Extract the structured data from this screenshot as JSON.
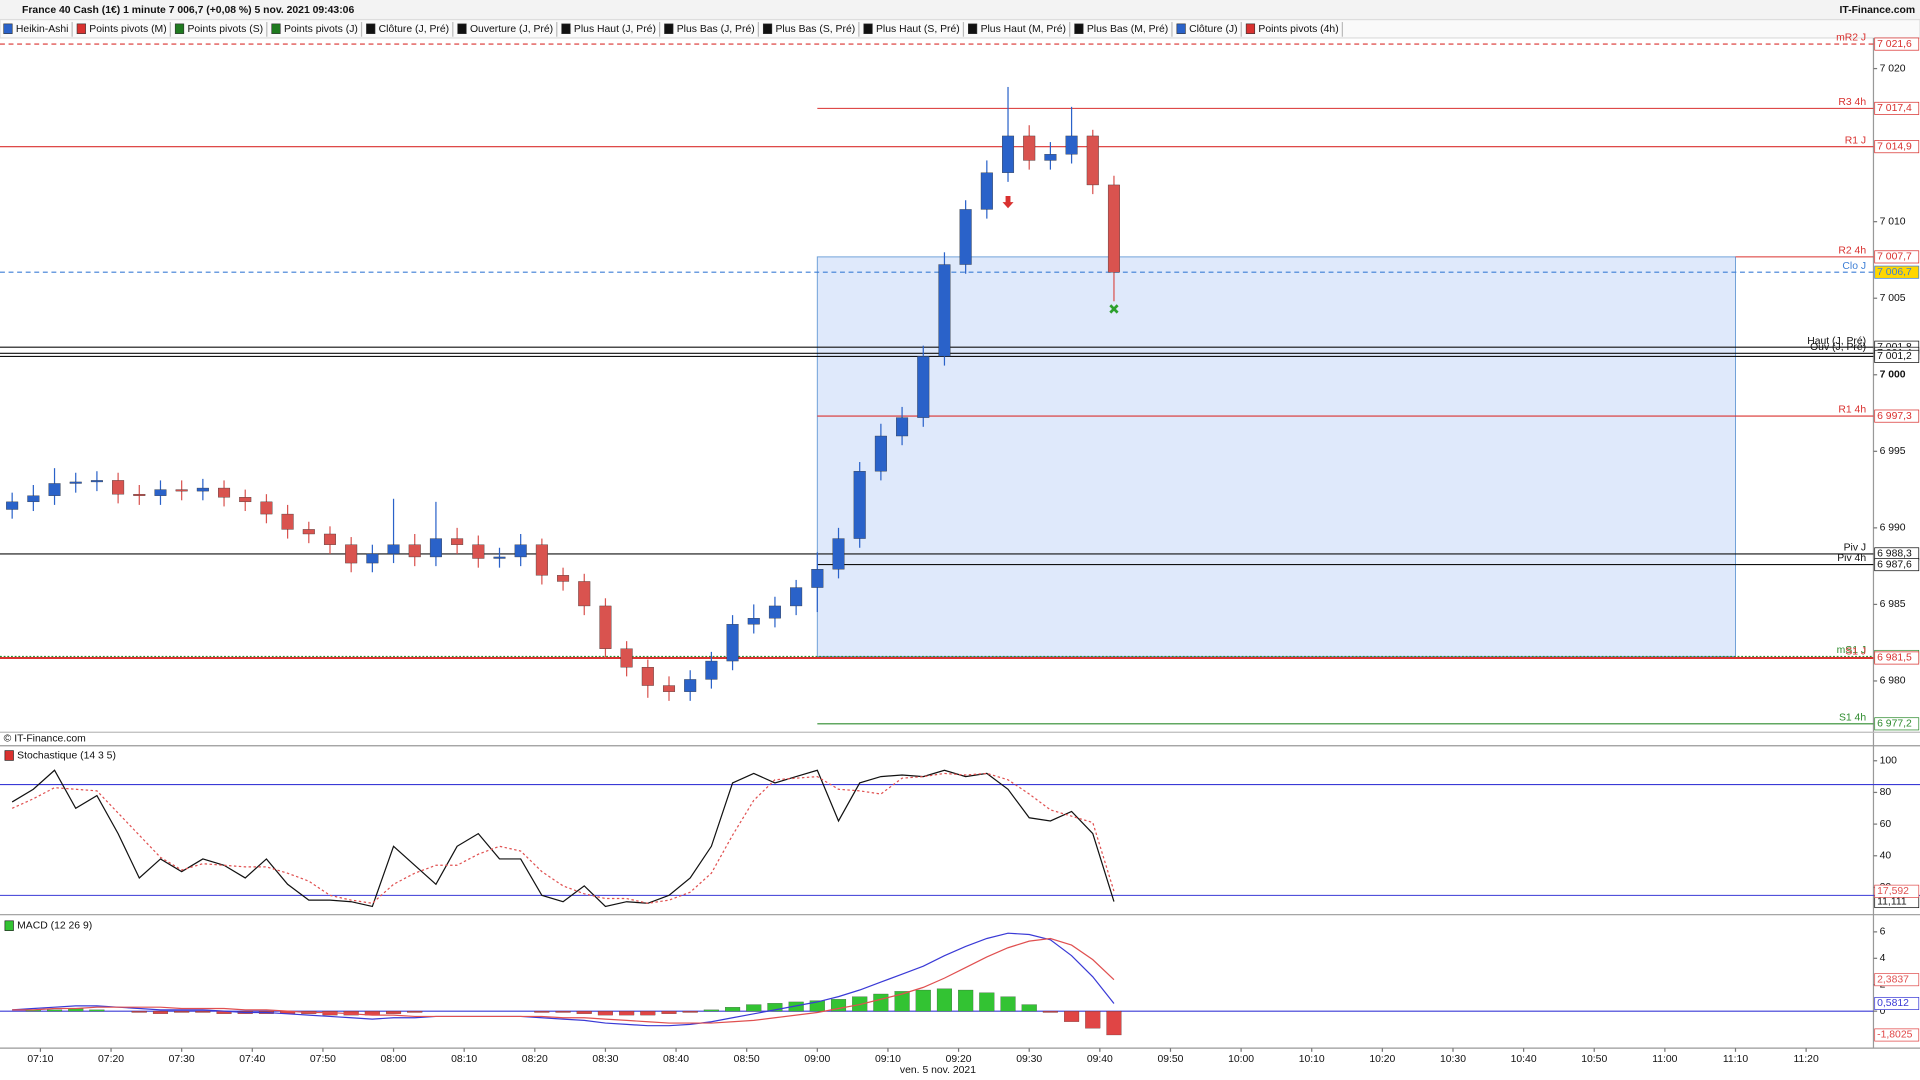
{
  "header": {
    "title": "France 40 Cash (1€) 1 minute 7 006,7 (+0,08 %) 5 nov. 2021 09:43:06",
    "brand": "IT-Finance.com"
  },
  "toolbar": [
    {
      "label": "Heikin-Ashi",
      "color": "#2a62c9"
    },
    {
      "label": "Points pivots (M)",
      "color": "#d9312f"
    },
    {
      "label": "Points pivots (S)",
      "color": "#1f7a1f"
    },
    {
      "label": "Points pivots (J)",
      "color": "#1f7a1f"
    },
    {
      "label": "Clôture (J, Pré)",
      "color": "#111111"
    },
    {
      "label": "Ouverture (J, Pré)",
      "color": "#111111"
    },
    {
      "label": "Plus Haut (J, Pré)",
      "color": "#111111"
    },
    {
      "label": "Plus Bas (J, Pré)",
      "color": "#111111"
    },
    {
      "label": "Plus Bas (S, Pré)",
      "color": "#111111"
    },
    {
      "label": "Plus Haut (S, Pré)",
      "color": "#111111"
    },
    {
      "label": "Plus Haut (M, Pré)",
      "color": "#111111"
    },
    {
      "label": "Plus Bas (M, Pré)",
      "color": "#111111"
    },
    {
      "label": "Clôture (J)",
      "color": "#2a62c9"
    },
    {
      "label": "Points pivots (4h)",
      "color": "#d9312f"
    }
  ],
  "chart_data": [
    {
      "type": "candlestick",
      "watermark": "© IT-Finance.com",
      "xlabel": "ven. 5 nov. 2021",
      "x": [
        "07:06",
        "07:09",
        "07:12",
        "07:15",
        "07:18",
        "07:21",
        "07:24",
        "07:27",
        "07:30",
        "07:33",
        "07:36",
        "07:39",
        "07:42",
        "07:45",
        "07:48",
        "07:51",
        "07:54",
        "07:57",
        "08:00",
        "08:03",
        "08:06",
        "08:09",
        "08:12",
        "08:15",
        "08:18",
        "08:21",
        "08:24",
        "08:27",
        "08:30",
        "08:33",
        "08:36",
        "08:39",
        "08:42",
        "08:45",
        "08:48",
        "08:51",
        "08:54",
        "08:57",
        "09:00",
        "09:03",
        "09:06",
        "09:09",
        "09:12",
        "09:15",
        "09:18",
        "09:21",
        "09:24",
        "09:27",
        "09:30",
        "09:33",
        "09:36",
        "09:39",
        "09:42"
      ],
      "opens": [
        6991.2,
        6991.7,
        6992.1,
        6992.9,
        6993.0,
        6993.1,
        6992.2,
        6992.1,
        6992.5,
        6992.4,
        6992.6,
        6992.0,
        6991.7,
        6990.9,
        6989.9,
        6989.6,
        6988.9,
        6987.7,
        6988.3,
        6988.9,
        6988.1,
        6989.3,
        6988.9,
        6988.0,
        6988.1,
        6988.9,
        6986.9,
        6986.5,
        6984.9,
        6982.1,
        6980.9,
        6979.7,
        6979.3,
        6980.1,
        6981.3,
        6983.7,
        6984.1,
        6984.9,
        6986.1,
        6987.3,
        6989.3,
        6993.7,
        6996.0,
        6997.2,
        7001.2,
        7007.2,
        7010.8,
        7013.2,
        7015.6,
        7014.0,
        7014.4,
        7015.6,
        7012.4
      ],
      "highs": [
        6992.3,
        6992.8,
        6993.9,
        6993.6,
        6993.7,
        6993.6,
        6992.8,
        6993.1,
        6993.1,
        6993.2,
        6993.1,
        6992.5,
        6992.2,
        6991.5,
        6990.4,
        6990.1,
        6989.4,
        6988.9,
        6991.9,
        6989.6,
        6991.7,
        6990.0,
        6989.5,
        6988.7,
        6989.6,
        6989.3,
        6987.4,
        6987.0,
        6985.4,
        6982.6,
        6981.4,
        6980.3,
        6980.7,
        6981.9,
        6984.3,
        6985.0,
        6985.5,
        6986.6,
        6988.4,
        6990.0,
        6994.3,
        6996.8,
        6997.9,
        7001.9,
        7008.0,
        7011.4,
        7014.0,
        7018.8,
        7016.3,
        7015.2,
        7017.5,
        7016.0,
        7013.0
      ],
      "lows": [
        6990.6,
        6991.1,
        6991.5,
        6992.3,
        6992.4,
        6991.6,
        6991.5,
        6991.5,
        6991.8,
        6991.8,
        6991.4,
        6991.1,
        6990.3,
        6989.3,
        6989.0,
        6988.3,
        6987.1,
        6987.1,
        6987.7,
        6987.5,
        6987.5,
        6988.3,
        6987.4,
        6987.4,
        6987.5,
        6986.3,
        6985.9,
        6984.3,
        6981.5,
        6980.3,
        6978.9,
        6978.7,
        6978.7,
        6979.5,
        6980.7,
        6983.1,
        6983.5,
        6984.3,
        6984.5,
        6986.7,
        6988.7,
        6993.1,
        6995.4,
        6996.6,
        7000.6,
        7006.6,
        7010.2,
        7012.6,
        7013.4,
        7013.4,
        7013.8,
        7011.8,
        7004.8
      ],
      "closes": [
        6991.7,
        6992.1,
        6992.9,
        6993.0,
        6993.1,
        6992.2,
        6992.1,
        6992.5,
        6992.4,
        6992.6,
        6992.0,
        6991.7,
        6990.9,
        6989.9,
        6989.6,
        6988.9,
        6987.7,
        6988.3,
        6988.9,
        6988.1,
        6989.3,
        6988.9,
        6988.0,
        6988.1,
        6988.9,
        6986.9,
        6986.5,
        6984.9,
        6982.1,
        6980.9,
        6979.7,
        6979.3,
        6980.1,
        6981.3,
        6983.7,
        6984.1,
        6984.9,
        6986.1,
        6987.3,
        6989.3,
        6993.7,
        6996.0,
        6997.2,
        7001.2,
        7007.2,
        7010.8,
        7013.2,
        7015.6,
        7014.0,
        7014.4,
        7015.6,
        7012.4,
        7006.7
      ],
      "up_color": "#2a62c9",
      "down_color": "#d9534f",
      "ylim": [
        6976.65,
        7022.0
      ],
      "yticks": [
        {
          "value": 7020,
          "label": "7 020"
        },
        {
          "value": 7010,
          "label": "7 010"
        },
        {
          "value": 7005,
          "label": "7 005"
        },
        {
          "value": 7000,
          "label": "7 000"
        },
        {
          "value": 6995,
          "label": "6 995"
        },
        {
          "value": 6990,
          "label": "6 990"
        },
        {
          "value": 6985,
          "label": "6 985"
        },
        {
          "value": 6980,
          "label": "6 980"
        }
      ],
      "xticks": [
        "07:10",
        "07:20",
        "07:30",
        "07:40",
        "07:50",
        "08:00",
        "08:10",
        "08:20",
        "08:30",
        "08:40",
        "08:50",
        "09:00",
        "09:10",
        "09:20",
        "09:30",
        "09:40",
        "09:50",
        "10:00",
        "10:10",
        "10:20",
        "10:30",
        "10:40",
        "10:50",
        "11:00",
        "11:10",
        "11:20"
      ],
      "zone": {
        "x": [
          "09:00",
          "11:10"
        ],
        "y": [
          7007.7,
          6981.6
        ],
        "color": "#dfe9fb",
        "border": "#6fa0d8"
      },
      "signals": [
        {
          "x": "09:27",
          "y": 7011.2,
          "color": "#d9312f",
          "marker": "arrow-down"
        },
        {
          "x": "09:42",
          "y": 7004.3,
          "color": "#2ca02c",
          "marker": "cross"
        }
      ],
      "levels": [
        {
          "name": "mR2 J",
          "value": 7021.6,
          "label": "7 021,6",
          "color": "#d9312f",
          "style": "dashed"
        },
        {
          "name": "R3 4h",
          "value": 7017.4,
          "label": "7 017,4",
          "color": "#d9312f",
          "style": "solid",
          "from": "09:00"
        },
        {
          "name": "R1 J",
          "value": 7014.9,
          "label": "7 014,9",
          "color": "#d9312f",
          "style": "solid"
        },
        {
          "name": "R2 4h",
          "value": 7007.7,
          "label": "7 007,7",
          "color": "#d9312f",
          "style": "solid",
          "from": "11:10"
        },
        {
          "name": "Clo J",
          "value": 7006.7,
          "label": "7 006,7",
          "color": "#3d7fd6",
          "style": "dashed",
          "highlight": "#ffd700"
        },
        {
          "name": "Haut (J, Pré)",
          "value": 7001.8,
          "label": "7 001,8",
          "color": "#111111",
          "style": "solid"
        },
        {
          "name": "Ouv (J, Pré)",
          "value": 7001.4,
          "label": "7 001,4",
          "color": "#111111",
          "style": "solid"
        },
        {
          "value": 7001.2,
          "label": "7 001,2",
          "color": "#111111",
          "style": "solid"
        },
        {
          "name": "R1 4h",
          "value": 6997.3,
          "label": "6 997,3",
          "color": "#d9312f",
          "style": "solid",
          "from": "09:00"
        },
        {
          "name": "Piv J",
          "value": 6988.3,
          "label": "6 988,3",
          "color": "#111111",
          "style": "solid"
        },
        {
          "name": "Piv 4h",
          "value": 6987.6,
          "label": "6 987,6",
          "color": "#111111",
          "style": "solid",
          "from": "09:00"
        },
        {
          "name": "mS1 J",
          "value": 6981.6,
          "label": "6 981,6",
          "color": "#2e8b2e",
          "style": "dotted"
        },
        {
          "name": "S1 J",
          "value": 6981.5,
          "label": "6 981,5",
          "color": "#d9312f",
          "style": "thick"
        },
        {
          "name": "S1 4h",
          "value": 6977.2,
          "label": "6 977,2",
          "color": "#2e8b2e",
          "style": "solid",
          "from": "09:00"
        }
      ]
    },
    {
      "type": "line",
      "title": "Stochastique (14 3 5)",
      "ylim": [
        2.8,
        109.5
      ],
      "yticks": [
        100,
        80,
        60,
        40,
        20
      ],
      "levels": [
        85,
        15
      ],
      "level_color": "#3a3ad6",
      "series": [
        {
          "name": "%K",
          "color": "#111111",
          "style": "solid",
          "last_label": "11,111",
          "values": [
            74,
            82,
            94,
            70,
            78,
            54,
            26,
            38,
            30,
            38,
            34,
            26,
            38,
            22,
            12,
            12,
            11,
            8,
            46,
            34,
            22,
            46,
            54,
            38,
            38,
            15,
            11,
            21,
            8,
            11,
            10,
            15,
            26,
            46,
            86,
            92,
            86,
            90,
            94,
            62,
            86,
            90,
            91,
            90,
            94,
            90,
            92,
            82,
            64,
            62,
            68,
            54,
            11.111
          ]
        },
        {
          "name": "%D",
          "color": "#e05050",
          "style": "dashed",
          "last_label": "17,592",
          "values": [
            70,
            76,
            83,
            82,
            81,
            67,
            53,
            39,
            31,
            35,
            34,
            33,
            33,
            29,
            24,
            15,
            12,
            10,
            22,
            29,
            34,
            34,
            41,
            46,
            43,
            30,
            21,
            16,
            13,
            13,
            10,
            12,
            17,
            29,
            53,
            75,
            88,
            89,
            90,
            82,
            81,
            79,
            89,
            90,
            92,
            91,
            92,
            88,
            79,
            69,
            65,
            61,
            17.592
          ]
        }
      ]
    },
    {
      "type": "macd",
      "title": "MACD (12 26 9)",
      "ylim": [
        -2.8,
        7.3
      ],
      "yticks": [
        6,
        4,
        2,
        0
      ],
      "zero_color": "#3a3ad6",
      "series": [
        {
          "name": "MACD",
          "color": "#3a3ad6",
          "last_label": "0,5812",
          "values": [
            0.1,
            0.2,
            0.3,
            0.4,
            0.4,
            0.3,
            0.2,
            0.1,
            0.1,
            0.1,
            0.0,
            -0.1,
            -0.1,
            -0.2,
            -0.3,
            -0.4,
            -0.5,
            -0.6,
            -0.5,
            -0.5,
            -0.4,
            -0.4,
            -0.4,
            -0.4,
            -0.4,
            -0.5,
            -0.6,
            -0.7,
            -0.9,
            -1.0,
            -1.1,
            -1.1,
            -1.0,
            -0.8,
            -0.5,
            -0.2,
            0.1,
            0.4,
            0.7,
            1.1,
            1.6,
            2.2,
            2.8,
            3.4,
            4.2,
            4.9,
            5.5,
            5.9,
            5.8,
            5.4,
            4.2,
            2.6,
            0.5812
          ]
        },
        {
          "name": "Signal",
          "color": "#e05050",
          "last_label": "2,3837",
          "values": [
            0.1,
            0.1,
            0.2,
            0.2,
            0.3,
            0.3,
            0.3,
            0.3,
            0.2,
            0.2,
            0.2,
            0.1,
            0.1,
            0.0,
            -0.1,
            -0.1,
            -0.2,
            -0.3,
            -0.3,
            -0.4,
            -0.4,
            -0.4,
            -0.4,
            -0.4,
            -0.4,
            -0.4,
            -0.5,
            -0.5,
            -0.6,
            -0.7,
            -0.8,
            -0.9,
            -0.9,
            -0.9,
            -0.8,
            -0.7,
            -0.5,
            -0.3,
            -0.1,
            0.2,
            0.5,
            0.9,
            1.3,
            1.8,
            2.5,
            3.3,
            4.1,
            4.8,
            5.3,
            5.5,
            5.0,
            3.9,
            2.3837
          ]
        }
      ],
      "histogram": {
        "pos_color": "#33c333",
        "neg_color": "#e04545",
        "last_label": "-1,8025",
        "values": [
          0.0,
          0.1,
          0.1,
          0.2,
          0.1,
          0.0,
          -0.1,
          -0.2,
          -0.1,
          -0.1,
          -0.2,
          -0.2,
          -0.2,
          -0.2,
          -0.2,
          -0.3,
          -0.3,
          -0.3,
          -0.2,
          -0.1,
          0,
          0,
          0,
          0,
          0,
          -0.1,
          -0.1,
          -0.2,
          -0.3,
          -0.3,
          -0.3,
          -0.2,
          -0.1,
          0.1,
          0.3,
          0.5,
          0.6,
          0.7,
          0.8,
          0.9,
          1.1,
          1.3,
          1.5,
          1.6,
          1.7,
          1.6,
          1.4,
          1.1,
          0.5,
          -0.1,
          -0.8,
          -1.3,
          -1.8025
        ]
      }
    }
  ]
}
